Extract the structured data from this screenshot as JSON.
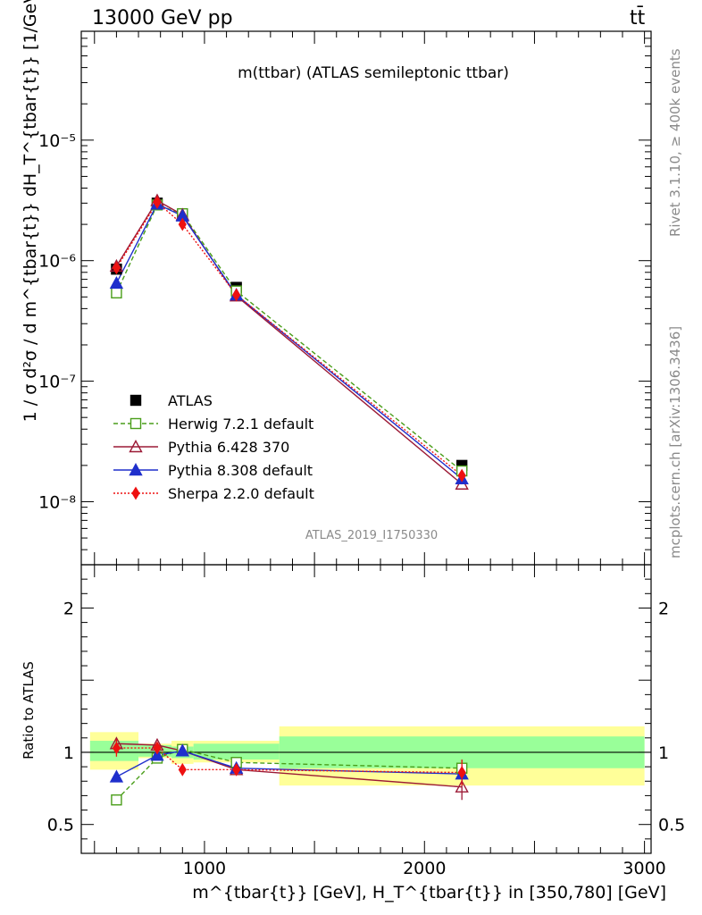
{
  "header": {
    "left": "13000 GeV pp",
    "right": "tt̄",
    "side_top": "Rivet 3.1.10, ≥ 400k events",
    "side_bottom": "mcplots.cern.ch [arXiv:1306.3436]"
  },
  "chart_data": [
    {
      "type": "line",
      "title": "m(ttbar) (ATLAS semileptonic ttbar)",
      "watermark": "ATLAS_2019_I1750330",
      "ylabel": "1 / σ d²σ / d m^{tbar{t}} dH_T^{tbar{t}} [1/GeV²]",
      "yscale": "log",
      "ylim": [
        3e-09,
        8e-05
      ],
      "xlim": [
        440,
        3030
      ],
      "y_ticks": [
        "10⁻⁸",
        "10⁻⁷",
        "10⁻⁶",
        "10⁻⁵"
      ],
      "legend_position": "bottom-left",
      "series": [
        {
          "name": "ATLAS",
          "color": "#000000",
          "marker": "square",
          "x": [
            600,
            785,
            900,
            1145,
            2170
          ],
          "y": [
            8.5e-07,
            3e-06,
            2.4e-06,
            6e-07,
            2e-08
          ]
        },
        {
          "name": "Herwig 7.2.1 default",
          "color": "#4a9e1a",
          "marker": "open-square",
          "dash": "dashed",
          "x": [
            600,
            785,
            900,
            1145,
            2170
          ],
          "y": [
            5.4e-07,
            2.9e-06,
            2.45e-06,
            5.6e-07,
            1.8e-08
          ]
        },
        {
          "name": "Pythia 6.428 370",
          "color": "#9c1a36",
          "marker": "open-triangle",
          "dash": "solid",
          "x": [
            600,
            785,
            900,
            1145,
            2170
          ],
          "y": [
            9e-07,
            3.15e-06,
            2.4e-06,
            5.1e-07,
            1.4e-08
          ]
        },
        {
          "name": "Pythia 8.308 default",
          "color": "#1f2fcc",
          "marker": "triangle",
          "dash": "solid",
          "x": [
            600,
            785,
            900,
            1145,
            2170
          ],
          "y": [
            6.5e-07,
            2.95e-06,
            2.35e-06,
            5.2e-07,
            1.55e-08
          ]
        },
        {
          "name": "Sherpa 2.2.0 default",
          "color": "#ee1111",
          "marker": "diamond",
          "dash": "dotted",
          "x": [
            600,
            785,
            900,
            1145,
            2170
          ],
          "y": [
            8.7e-07,
            3.05e-06,
            2e-06,
            5.2e-07,
            1.65e-08
          ]
        }
      ]
    },
    {
      "type": "line",
      "ylabel": "Ratio to ATLAS",
      "xlabel": "m^{tbar{t}} [GeV], H_T^{tbar{t}} in [350,780] [GeV]",
      "ylim": [
        0.3,
        2.3
      ],
      "xlim": [
        440,
        3030
      ],
      "y_ticks": [
        {
          "v": 0.5,
          "label": "0.5"
        },
        {
          "v": 1,
          "label": "1"
        },
        {
          "v": 2,
          "label": "2"
        }
      ],
      "x_ticks": [
        {
          "v": 1000,
          "label": "1000"
        },
        {
          "v": 2000,
          "label": "2000"
        },
        {
          "v": 3000,
          "label": "3000"
        }
      ],
      "bands": [
        {
          "x0": 480,
          "x1": 700,
          "inner": [
            0.94,
            1.08
          ],
          "outer": [
            0.88,
            1.14
          ]
        },
        {
          "x0": 700,
          "x1": 850,
          "inner": [
            0.97,
            1.05
          ],
          "outer": [
            0.96,
            1.06
          ]
        },
        {
          "x0": 850,
          "x1": 950,
          "inner": [
            0.96,
            1.04
          ],
          "outer": [
            0.92,
            1.08
          ]
        },
        {
          "x0": 950,
          "x1": 1340,
          "inner": [
            0.95,
            1.06
          ],
          "outer": [
            0.93,
            1.08
          ]
        },
        {
          "x0": 1340,
          "x1": 3000,
          "inner": [
            0.89,
            1.11
          ],
          "outer": [
            0.77,
            1.18
          ]
        }
      ],
      "series": [
        {
          "name": "Herwig 7.2.1 default",
          "color": "#4a9e1a",
          "marker": "open-square",
          "dash": "dashed",
          "x": [
            600,
            785,
            900,
            1145,
            2170
          ],
          "y": [
            0.67,
            0.96,
            1.02,
            0.93,
            0.89
          ],
          "err": [
            0.03,
            0.02,
            0.02,
            0.03,
            0.06
          ]
        },
        {
          "name": "Pythia 6.428 370",
          "color": "#9c1a36",
          "marker": "open-triangle",
          "dash": "solid",
          "x": [
            600,
            785,
            900,
            1145,
            2170
          ],
          "y": [
            1.06,
            1.05,
            1.01,
            0.88,
            0.76
          ],
          "err": [
            0.03,
            0.02,
            0.02,
            0.03,
            0.09
          ]
        },
        {
          "name": "Pythia 8.308 default",
          "color": "#1f2fcc",
          "marker": "triangle",
          "dash": "solid",
          "x": [
            600,
            785,
            900,
            1145,
            2170
          ],
          "y": [
            0.83,
            0.98,
            1.01,
            0.89,
            0.85
          ],
          "err": [
            0.03,
            0.02,
            0.02,
            0.03,
            0.06
          ]
        },
        {
          "name": "Sherpa 2.2.0 default",
          "color": "#ee1111",
          "marker": "diamond",
          "dash": "dotted",
          "x": [
            600,
            785,
            900,
            1145,
            2170
          ],
          "y": [
            1.03,
            1.03,
            0.88,
            0.88,
            0.86
          ],
          "err": [
            0.06,
            0.03,
            0.04,
            0.03,
            0.09
          ]
        }
      ]
    }
  ]
}
